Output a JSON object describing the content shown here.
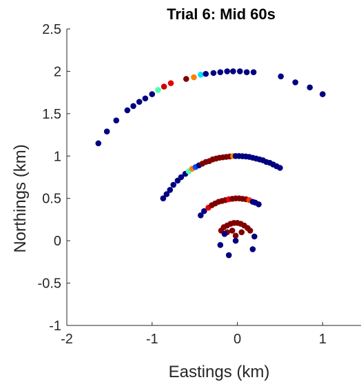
{
  "chart_data": {
    "type": "scatter",
    "title": "Trial 6: Mid 60s",
    "xlabel": "Eastings (km)",
    "ylabel": "Northings (km)",
    "xlim": [
      -2,
      1.45
    ],
    "ylim": [
      -1,
      2.5
    ],
    "xticks": [
      -2,
      -1,
      0,
      1
    ],
    "yticks": [
      -1,
      -0.5,
      0,
      0.5,
      1,
      1.5,
      2,
      2.5
    ],
    "xtick_labels": [
      "-2",
      "-1",
      "0",
      "1"
    ],
    "ytick_labels": [
      "-1",
      "-0.5",
      "0",
      "0.5",
      "1",
      "1.5",
      "2",
      "2.5"
    ],
    "grid": false,
    "colormap": "jet",
    "series": [
      {
        "points": [
          {
            "x": -1.63,
            "y": 1.15,
            "c": 0.0
          },
          {
            "x": -1.53,
            "y": 1.29,
            "c": 0.0
          },
          {
            "x": -1.42,
            "y": 1.42,
            "c": 0.0
          },
          {
            "x": -1.29,
            "y": 1.54,
            "c": 0.0
          },
          {
            "x": -1.22,
            "y": 1.59,
            "c": 0.0
          },
          {
            "x": -1.15,
            "y": 1.64,
            "c": 0.0
          },
          {
            "x": -1.08,
            "y": 1.68,
            "c": 0.0
          },
          {
            "x": -1.0,
            "y": 1.73,
            "c": 0.0
          },
          {
            "x": -0.93,
            "y": 1.78,
            "c": 0.45
          },
          {
            "x": -0.86,
            "y": 1.82,
            "c": 0.92
          },
          {
            "x": -0.78,
            "y": 1.86,
            "c": 0.9
          },
          {
            "x": -0.6,
            "y": 1.91,
            "c": 1.0
          },
          {
            "x": -0.51,
            "y": 1.93,
            "c": 0.75
          },
          {
            "x": -0.43,
            "y": 1.96,
            "c": 0.35
          },
          {
            "x": -0.37,
            "y": 1.97,
            "c": 0.0
          },
          {
            "x": -0.28,
            "y": 1.98,
            "c": 0.0
          },
          {
            "x": -0.2,
            "y": 1.99,
            "c": 0.0
          },
          {
            "x": -0.12,
            "y": 2.0,
            "c": 0.0
          },
          {
            "x": -0.05,
            "y": 2.0,
            "c": 0.0
          },
          {
            "x": 0.03,
            "y": 2.0,
            "c": 0.0
          },
          {
            "x": 0.11,
            "y": 1.99,
            "c": 0.0
          },
          {
            "x": 0.19,
            "y": 1.99,
            "c": 0.0
          },
          {
            "x": 0.51,
            "y": 1.94,
            "c": 0.0
          },
          {
            "x": 0.68,
            "y": 1.87,
            "c": 0.0
          },
          {
            "x": 0.85,
            "y": 1.81,
            "c": 0.0
          },
          {
            "x": 1.0,
            "y": 1.73,
            "c": 0.0
          },
          {
            "x": -0.87,
            "y": 0.5,
            "c": 0.0
          },
          {
            "x": -0.83,
            "y": 0.55,
            "c": 0.0
          },
          {
            "x": -0.79,
            "y": 0.6,
            "c": 0.0
          },
          {
            "x": -0.75,
            "y": 0.66,
            "c": 0.0
          },
          {
            "x": -0.7,
            "y": 0.71,
            "c": 0.0
          },
          {
            "x": -0.66,
            "y": 0.75,
            "c": 0.0
          },
          {
            "x": -0.61,
            "y": 0.79,
            "c": 0.0
          },
          {
            "x": -0.57,
            "y": 0.82,
            "c": 0.45
          },
          {
            "x": -0.53,
            "y": 0.85,
            "c": 0.75
          },
          {
            "x": -0.49,
            "y": 0.87,
            "c": 0.2
          },
          {
            "x": -0.45,
            "y": 0.89,
            "c": 0.0
          },
          {
            "x": -0.41,
            "y": 0.91,
            "c": 1.0
          },
          {
            "x": -0.37,
            "y": 0.93,
            "c": 1.0
          },
          {
            "x": -0.33,
            "y": 0.94,
            "c": 1.0
          },
          {
            "x": -0.29,
            "y": 0.96,
            "c": 1.0
          },
          {
            "x": -0.25,
            "y": 0.97,
            "c": 1.0
          },
          {
            "x": -0.21,
            "y": 0.98,
            "c": 1.0
          },
          {
            "x": -0.17,
            "y": 0.985,
            "c": 1.0
          },
          {
            "x": -0.13,
            "y": 0.99,
            "c": 1.0
          },
          {
            "x": -0.09,
            "y": 0.995,
            "c": 1.0
          },
          {
            "x": -0.05,
            "y": 1.0,
            "c": 0.75
          },
          {
            "x": -0.02,
            "y": 1.0,
            "c": 0.0
          },
          {
            "x": 0.02,
            "y": 1.0,
            "c": 0.0
          },
          {
            "x": 0.06,
            "y": 0.998,
            "c": 0.0
          },
          {
            "x": 0.1,
            "y": 0.995,
            "c": 0.0
          },
          {
            "x": 0.14,
            "y": 0.99,
            "c": 0.0
          },
          {
            "x": 0.18,
            "y": 0.98,
            "c": 0.0
          },
          {
            "x": 0.22,
            "y": 0.97,
            "c": 0.0
          },
          {
            "x": 0.26,
            "y": 0.96,
            "c": 0.0
          },
          {
            "x": 0.3,
            "y": 0.95,
            "c": 0.0
          },
          {
            "x": 0.34,
            "y": 0.93,
            "c": 0.0
          },
          {
            "x": 0.38,
            "y": 0.92,
            "c": 0.0
          },
          {
            "x": 0.42,
            "y": 0.9,
            "c": 0.0
          },
          {
            "x": 0.46,
            "y": 0.88,
            "c": 0.0
          },
          {
            "x": 0.5,
            "y": 0.86,
            "c": 0.0
          },
          {
            "x": -0.43,
            "y": 0.3,
            "c": 0.0
          },
          {
            "x": -0.39,
            "y": 0.35,
            "c": 0.0
          },
          {
            "x": -0.34,
            "y": 0.39,
            "c": 0.9
          },
          {
            "x": -0.3,
            "y": 0.42,
            "c": 1.0
          },
          {
            "x": -0.26,
            "y": 0.44,
            "c": 1.0
          },
          {
            "x": -0.22,
            "y": 0.46,
            "c": 1.0
          },
          {
            "x": -0.18,
            "y": 0.47,
            "c": 1.0
          },
          {
            "x": -0.14,
            "y": 0.48,
            "c": 1.0
          },
          {
            "x": -0.1,
            "y": 0.49,
            "c": 0.9
          },
          {
            "x": -0.06,
            "y": 0.495,
            "c": 1.0
          },
          {
            "x": -0.02,
            "y": 0.5,
            "c": 1.0
          },
          {
            "x": 0.02,
            "y": 0.5,
            "c": 1.0
          },
          {
            "x": 0.06,
            "y": 0.495,
            "c": 1.0
          },
          {
            "x": 0.1,
            "y": 0.49,
            "c": 1.0
          },
          {
            "x": 0.14,
            "y": 0.48,
            "c": 0.82
          },
          {
            "x": 0.18,
            "y": 0.46,
            "c": 0.0
          },
          {
            "x": 0.21,
            "y": 0.45,
            "c": 0.0
          },
          {
            "x": 0.25,
            "y": 0.43,
            "c": 0.0
          },
          {
            "x": -0.19,
            "y": 0.12,
            "c": 1.0
          },
          {
            "x": -0.16,
            "y": 0.16,
            "c": 1.0
          },
          {
            "x": -0.12,
            "y": 0.18,
            "c": 1.0
          },
          {
            "x": -0.08,
            "y": 0.2,
            "c": 1.0
          },
          {
            "x": -0.04,
            "y": 0.21,
            "c": 1.0
          },
          {
            "x": 0.0,
            "y": 0.21,
            "c": 1.0
          },
          {
            "x": 0.04,
            "y": 0.2,
            "c": 1.0
          },
          {
            "x": 0.08,
            "y": 0.18,
            "c": 1.0
          },
          {
            "x": 0.12,
            "y": 0.15,
            "c": 1.0
          },
          {
            "x": 0.15,
            "y": 0.12,
            "c": 1.0
          },
          {
            "x": -0.12,
            "y": 0.1,
            "c": 1.0
          },
          {
            "x": -0.06,
            "y": 0.12,
            "c": 1.0
          },
          {
            "x": -0.02,
            "y": 0.06,
            "c": 1.0
          },
          {
            "x": 0.05,
            "y": 0.1,
            "c": 1.0
          },
          {
            "x": -0.15,
            "y": 0.08,
            "c": 0.0
          },
          {
            "x": -0.02,
            "y": 0.0,
            "c": 0.0
          },
          {
            "x": 0.2,
            "y": 0.05,
            "c": 0.0
          },
          {
            "x": -0.2,
            "y": -0.05,
            "c": 0.0
          },
          {
            "x": 0.18,
            "y": -0.1,
            "c": 0.0
          },
          {
            "x": -0.1,
            "y": -0.17,
            "c": 0.0
          }
        ]
      }
    ]
  }
}
